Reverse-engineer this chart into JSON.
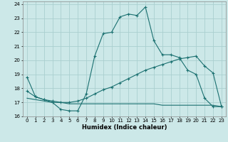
{
  "title": "",
  "xlabel": "Humidex (Indice chaleur)",
  "bg_color": "#cce8e8",
  "grid_color": "#aacfcf",
  "line_color": "#1a7070",
  "xlim": [
    -0.5,
    23.5
  ],
  "ylim": [
    16,
    24.2
  ],
  "yticks": [
    16,
    17,
    18,
    19,
    20,
    21,
    22,
    23,
    24
  ],
  "xticks": [
    0,
    1,
    2,
    3,
    4,
    5,
    6,
    7,
    8,
    9,
    10,
    11,
    12,
    13,
    14,
    15,
    16,
    17,
    18,
    19,
    20,
    21,
    22,
    23
  ],
  "line1_x": [
    0,
    1,
    2,
    3,
    4,
    5,
    6,
    7,
    8,
    9,
    10,
    11,
    12,
    13,
    14,
    15,
    16,
    17,
    18,
    19,
    20,
    21,
    22,
    23
  ],
  "line1_y": [
    18.8,
    17.4,
    17.2,
    17.0,
    16.5,
    16.4,
    16.4,
    17.6,
    20.3,
    21.9,
    22.0,
    23.1,
    23.3,
    23.2,
    23.8,
    21.4,
    20.4,
    20.4,
    20.2,
    19.3,
    19.0,
    17.3,
    16.7,
    16.7
  ],
  "line2_x": [
    0,
    1,
    2,
    3,
    4,
    5,
    6,
    7,
    8,
    9,
    10,
    11,
    12,
    13,
    14,
    15,
    16,
    17,
    18,
    19,
    20,
    21,
    22,
    23
  ],
  "line2_y": [
    17.8,
    17.4,
    17.2,
    17.1,
    17.0,
    17.0,
    17.1,
    17.3,
    17.6,
    17.9,
    18.1,
    18.4,
    18.7,
    19.0,
    19.3,
    19.5,
    19.7,
    19.9,
    20.1,
    20.2,
    20.3,
    19.6,
    19.1,
    16.7
  ],
  "line3_x": [
    0,
    1,
    2,
    3,
    4,
    5,
    6,
    7,
    8,
    9,
    10,
    11,
    12,
    13,
    14,
    15,
    16,
    17,
    18,
    19,
    20,
    21,
    22,
    23
  ],
  "line3_y": [
    17.3,
    17.2,
    17.1,
    17.0,
    17.0,
    16.9,
    16.9,
    16.9,
    16.9,
    16.9,
    16.9,
    16.9,
    16.9,
    16.9,
    16.9,
    16.9,
    16.8,
    16.8,
    16.8,
    16.8,
    16.8,
    16.8,
    16.8,
    16.7
  ]
}
